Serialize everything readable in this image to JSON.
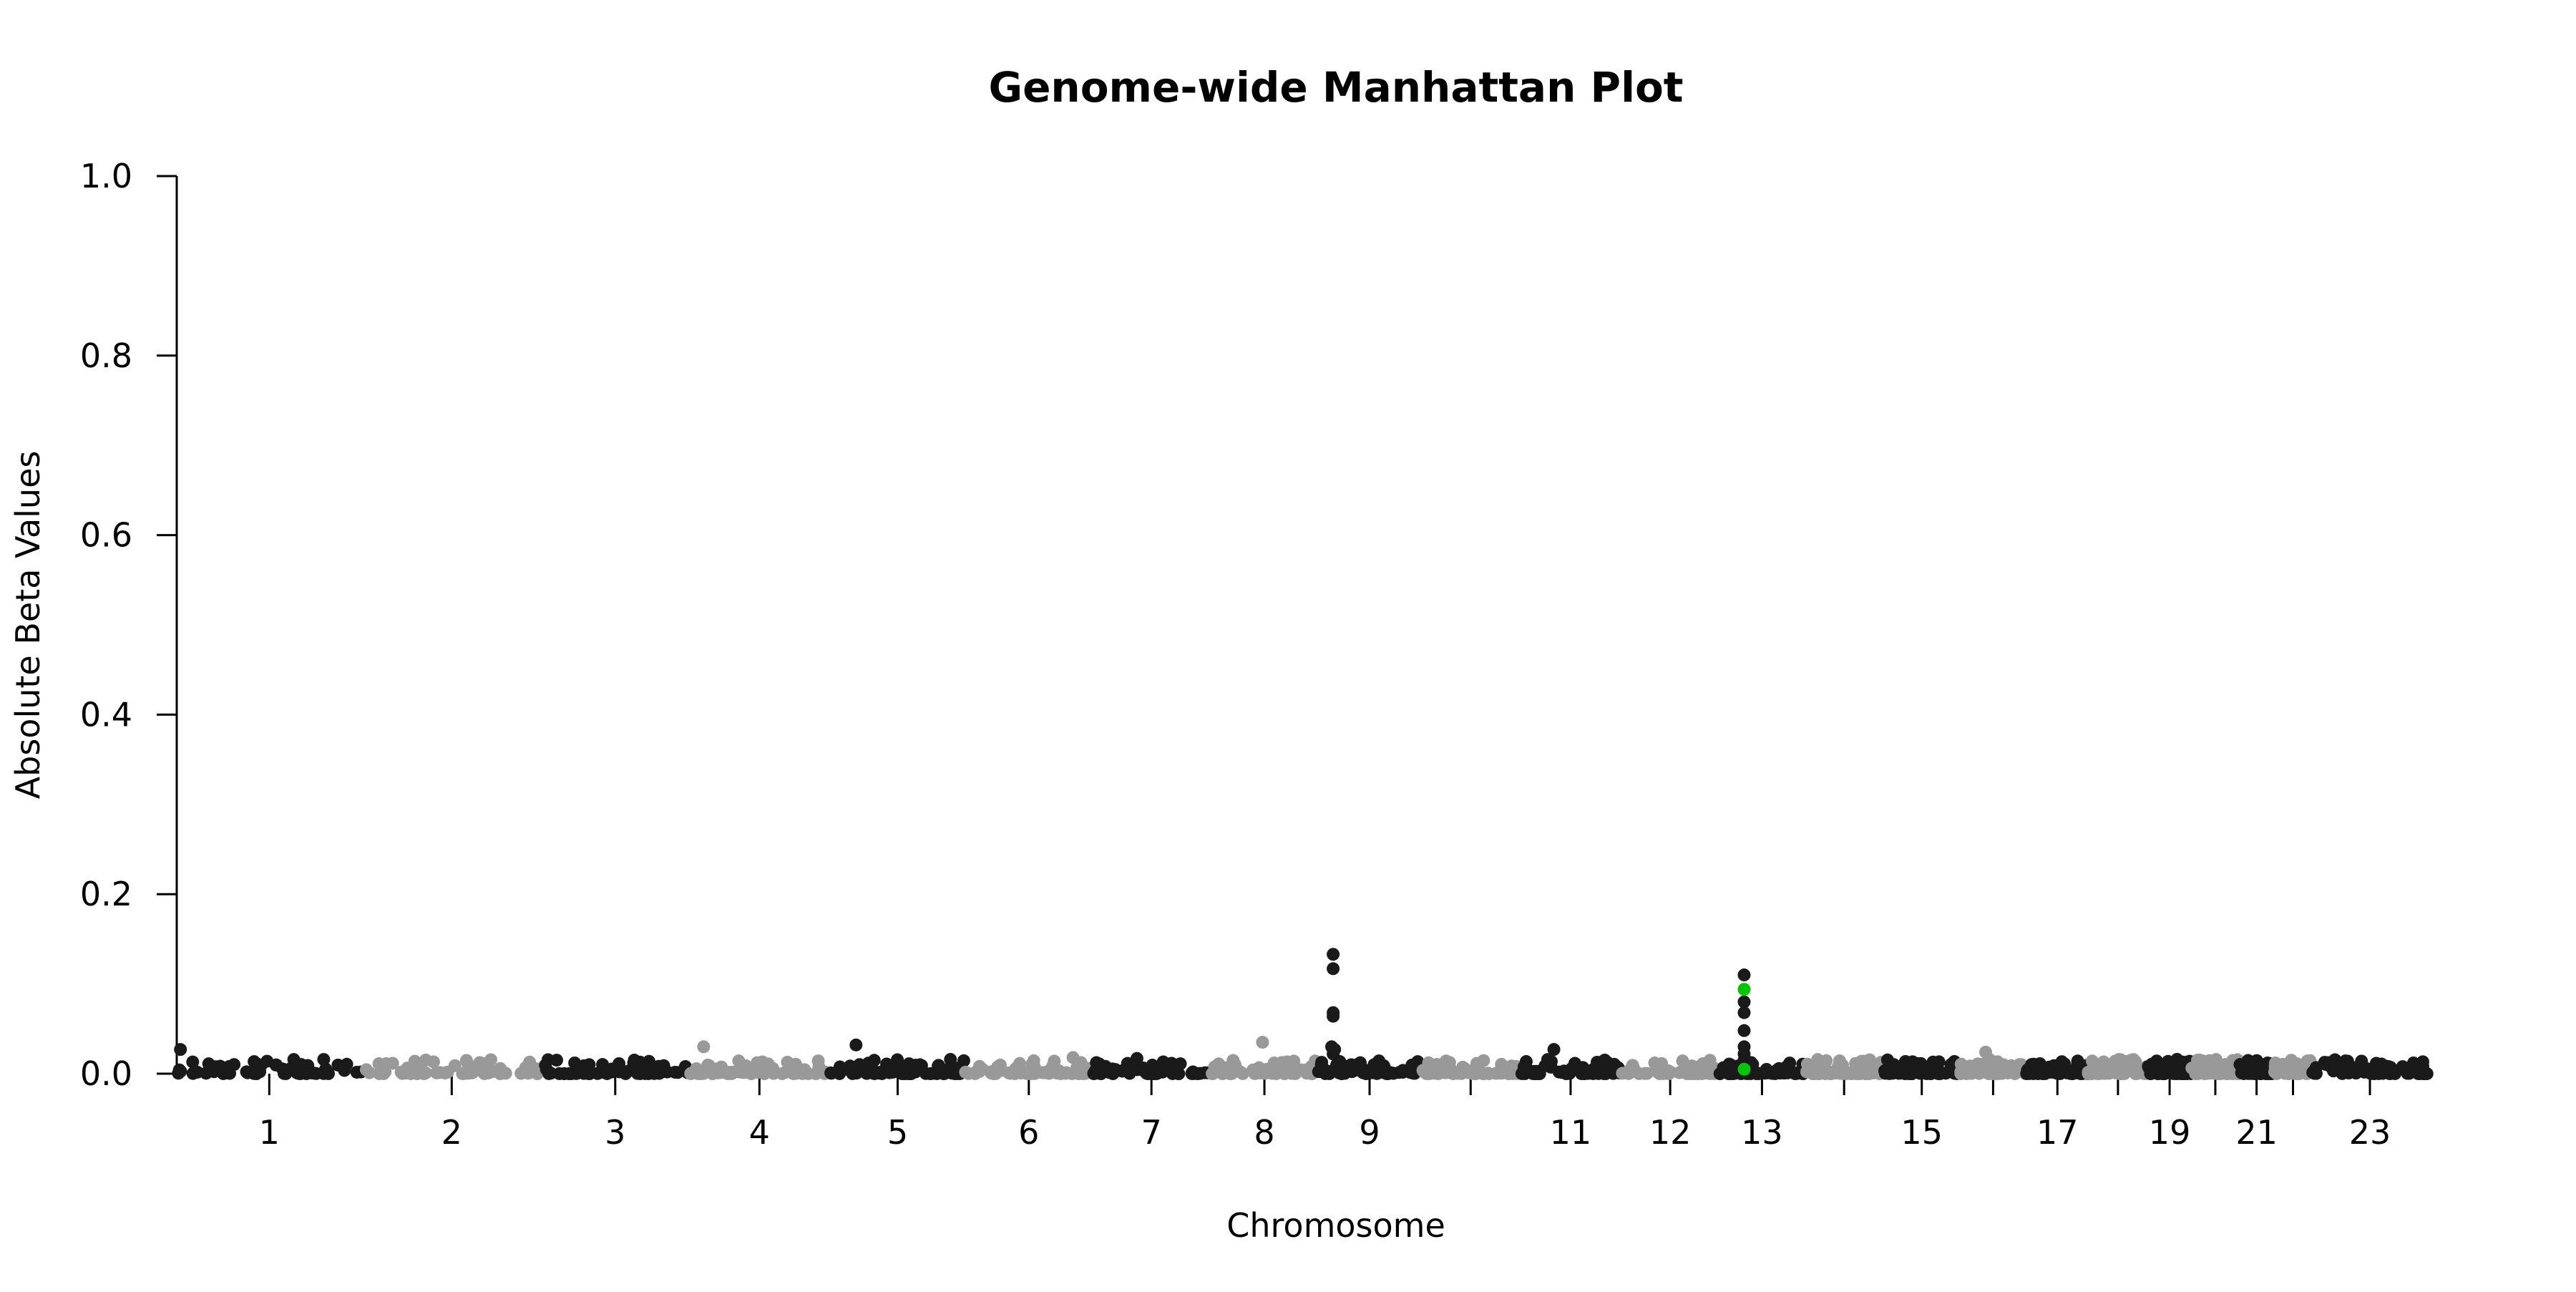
{
  "chart_data": {
    "type": "scatter",
    "title": "Genome-wide Manhattan Plot",
    "xlabel": "Chromosome",
    "ylabel": "Absolute Beta Values",
    "ylim": [
      0,
      1
    ],
    "y_ticks": [
      {
        "value": 0,
        "label": "0.0"
      },
      {
        "value": 0.2,
        "label": "0.2"
      },
      {
        "value": 0.4,
        "label": "0.4"
      },
      {
        "value": 0.6,
        "label": "0.6"
      },
      {
        "value": 0.8,
        "label": "0.8"
      },
      {
        "value": 1.0,
        "label": "1.0"
      }
    ],
    "grid": false,
    "legend": "none",
    "colors": {
      "dark": "#1a1a1a",
      "light": "#999999",
      "highlight": "#00c800"
    },
    "chromosomes": [
      {
        "chr": 1,
        "label": "1",
        "start": 0,
        "end": 249,
        "color": "dark"
      },
      {
        "chr": 2,
        "label": "2",
        "start": 249,
        "end": 491,
        "color": "light"
      },
      {
        "chr": 3,
        "label": "3",
        "start": 491,
        "end": 689,
        "color": "dark"
      },
      {
        "chr": 4,
        "label": "4",
        "start": 689,
        "end": 879,
        "color": "light"
      },
      {
        "chr": 5,
        "label": "5",
        "start": 879,
        "end": 1061,
        "color": "dark"
      },
      {
        "chr": 6,
        "label": "6",
        "start": 1061,
        "end": 1232,
        "color": "light"
      },
      {
        "chr": 7,
        "label": "7",
        "start": 1232,
        "end": 1391,
        "color": "dark"
      },
      {
        "chr": 8,
        "label": "8",
        "start": 1391,
        "end": 1536,
        "color": "light"
      },
      {
        "chr": 9,
        "label": "9",
        "start": 1536,
        "end": 1674,
        "color": "dark"
      },
      {
        "chr": 10,
        "label": "",
        "start": 1674,
        "end": 1808,
        "color": "light"
      },
      {
        "chr": 11,
        "label": "11",
        "start": 1808,
        "end": 1943,
        "color": "dark"
      },
      {
        "chr": 12,
        "label": "12",
        "start": 1943,
        "end": 2076,
        "color": "light"
      },
      {
        "chr": 13,
        "label": "13",
        "start": 2076,
        "end": 2190,
        "color": "dark"
      },
      {
        "chr": 14,
        "label": "",
        "start": 2190,
        "end": 2297,
        "color": "light"
      },
      {
        "chr": 15,
        "label": "15",
        "start": 2297,
        "end": 2399,
        "color": "dark"
      },
      {
        "chr": 16,
        "label": "",
        "start": 2399,
        "end": 2489,
        "color": "light"
      },
      {
        "chr": 17,
        "label": "17",
        "start": 2489,
        "end": 2572,
        "color": "dark"
      },
      {
        "chr": 18,
        "label": "",
        "start": 2572,
        "end": 2652,
        "color": "light"
      },
      {
        "chr": 19,
        "label": "19",
        "start": 2652,
        "end": 2711,
        "color": "dark"
      },
      {
        "chr": 20,
        "label": "",
        "start": 2711,
        "end": 2775,
        "color": "light"
      },
      {
        "chr": 21,
        "label": "21",
        "start": 2775,
        "end": 2822,
        "color": "dark"
      },
      {
        "chr": 22,
        "label": "",
        "start": 2822,
        "end": 2873,
        "color": "light"
      },
      {
        "chr": 23,
        "label": "23",
        "start": 2873,
        "end": 3029,
        "color": "dark"
      }
    ],
    "highlighted_points": [
      {
        "chr": 13,
        "pos": 33,
        "y": 0.094
      },
      {
        "chr": 13,
        "pos": 33,
        "y": 0.005
      }
    ],
    "peak_points": [
      {
        "chr": 9,
        "pos": 20,
        "y": 0.133
      },
      {
        "chr": 9,
        "pos": 20,
        "y": 0.117
      },
      {
        "chr": 9,
        "pos": 20,
        "y": 0.068
      },
      {
        "chr": 9,
        "pos": 20,
        "y": 0.064
      },
      {
        "chr": 9,
        "pos": 18,
        "y": 0.03
      },
      {
        "chr": 9,
        "pos": 22,
        "y": 0.027
      },
      {
        "chr": 9,
        "pos": 20,
        "y": 0.022
      },
      {
        "chr": 13,
        "pos": 33,
        "y": 0.11
      },
      {
        "chr": 13,
        "pos": 33,
        "y": 0.08
      },
      {
        "chr": 13,
        "pos": 33,
        "y": 0.068
      },
      {
        "chr": 13,
        "pos": 33,
        "y": 0.048
      },
      {
        "chr": 13,
        "pos": 33,
        "y": 0.03
      },
      {
        "chr": 13,
        "pos": 33,
        "y": 0.022
      },
      {
        "chr": 13,
        "pos": 33,
        "y": 0.015
      },
      {
        "chr": 1,
        "pos": 5,
        "y": 0.027
      },
      {
        "chr": 4,
        "pos": 20,
        "y": 0.03
      },
      {
        "chr": 5,
        "pos": 35,
        "y": 0.032
      },
      {
        "chr": 8,
        "pos": 70,
        "y": 0.035
      },
      {
        "chr": 11,
        "pos": 45,
        "y": 0.027
      },
      {
        "chr": 16,
        "pos": 35,
        "y": 0.024
      },
      {
        "chr": 6,
        "pos": 145,
        "y": 0.018
      },
      {
        "chr": 7,
        "pos": 60,
        "y": 0.017
      },
      {
        "chr": 12,
        "pos": 120,
        "y": 0.015
      }
    ],
    "background_points_per_chromosome": 60,
    "background_y_range": [
      0,
      0.016
    ]
  }
}
